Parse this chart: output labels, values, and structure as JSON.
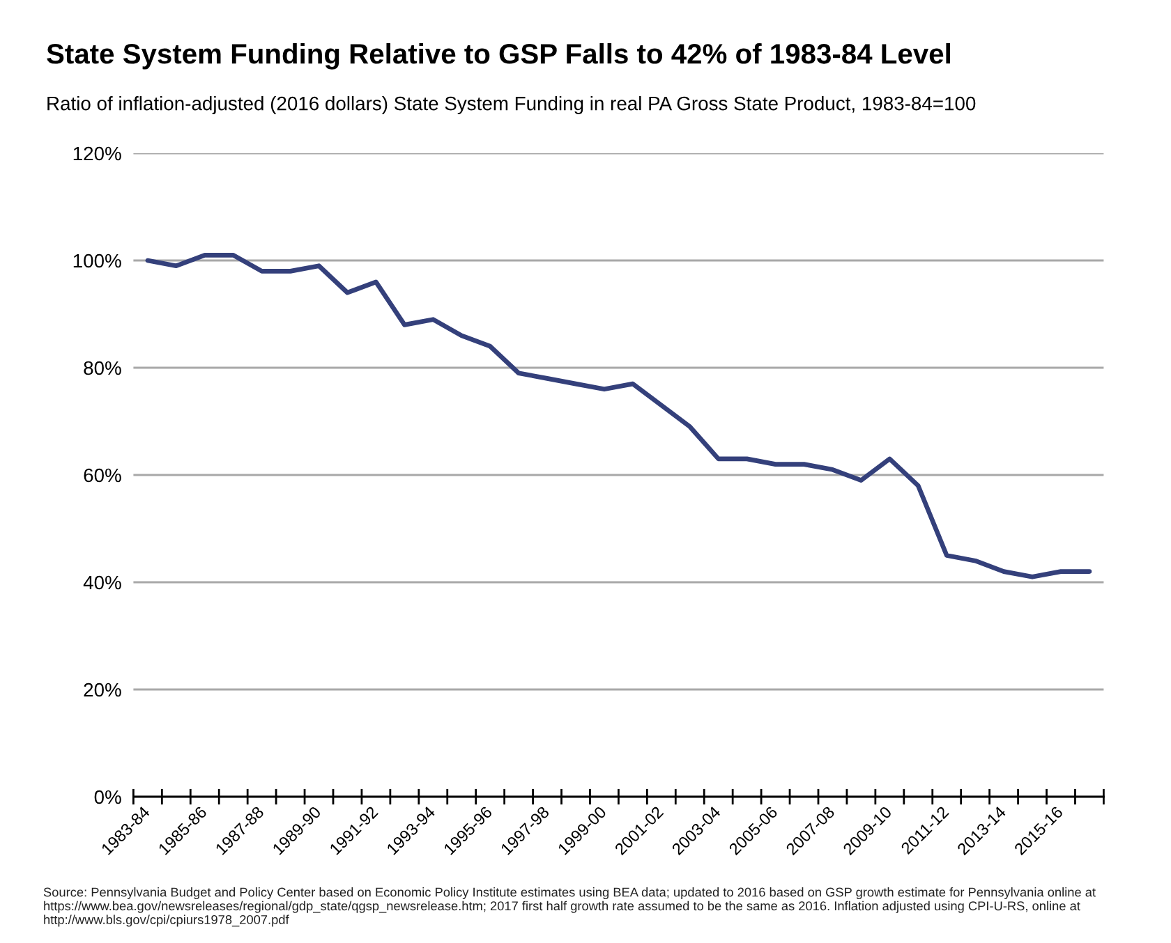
{
  "chart_data": {
    "type": "line",
    "title": "State System Funding Relative to GSP Falls to 42% of 1983-84 Level",
    "subtitle": "Ratio of inflation-adjusted (2016 dollars) State System Funding in real PA Gross State Product, 1983-84=100",
    "categories": [
      "1983-84",
      null,
      "1985-86",
      null,
      "1987-88",
      null,
      "1989-90",
      null,
      "1991-92",
      null,
      "1993-94",
      null,
      "1995-96",
      null,
      "1997-98",
      null,
      "1999-00",
      null,
      "2001-02",
      null,
      "2003-04",
      null,
      "2005-06",
      null,
      "2007-08",
      null,
      "2009-10",
      null,
      "2011-12",
      null,
      "2013-14",
      null,
      "2015-16",
      null
    ],
    "series": [
      {
        "color": "#34407b",
        "values": [
          100,
          99,
          101,
          101,
          98,
          98,
          99,
          94,
          96,
          88,
          89,
          86,
          84,
          79,
          78,
          77,
          76,
          77,
          73,
          69,
          63,
          63,
          62,
          62,
          61,
          59,
          63,
          58,
          45,
          44,
          42,
          41,
          42,
          42
        ]
      }
    ],
    "ylim": [
      0,
      120
    ],
    "yticks": [
      {
        "value": 0,
        "label": "0%"
      },
      {
        "value": 20,
        "label": "20%"
      },
      {
        "value": 40,
        "label": "40%"
      },
      {
        "value": 60,
        "label": "60%"
      },
      {
        "value": 80,
        "label": "80%"
      },
      {
        "value": 100,
        "label": "100%"
      },
      {
        "value": 120,
        "label": "120%"
      }
    ],
    "grid": "y",
    "annotations": [
      "Source: Pennsylvania Budget and Policy Center based on Economic Policy Institute estimates using BEA data; updated to 2016 based on GSP growth estimate for Pennsylvania online at https://www.bea.gov/newsreleases/regional/gdp_state/qgsp_newsrelease.htm; 2017 first half growth rate assumed to be the same as 2016. Inflation adjusted using CPI-U-RS, online at http://www.bls.gov/cpi/cpiurs1978_2007.pdf"
    ]
  }
}
